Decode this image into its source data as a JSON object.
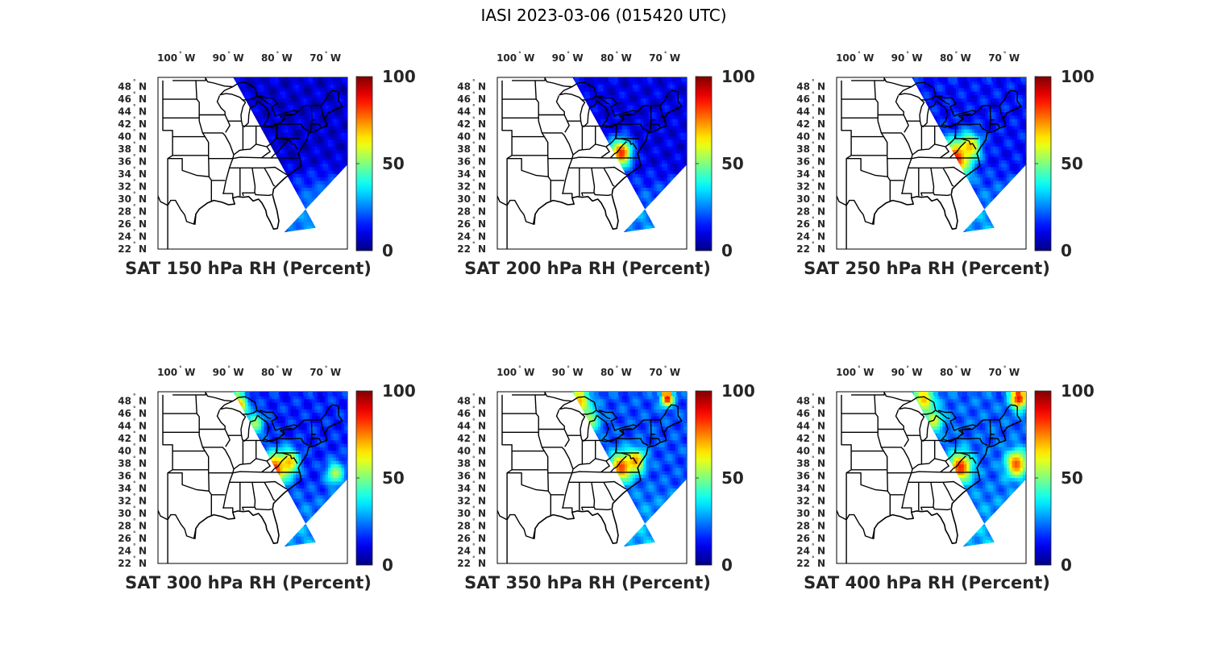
{
  "figure_title": "IASI 2023-03-06 (015420 UTC)",
  "colors": {
    "land_outline": "#000000",
    "colormap": "jet",
    "low": "#00008f",
    "mid": "#7fff7f",
    "high": "#800000"
  },
  "chart_data": [
    {
      "type": "map",
      "title": "SAT 150 hPa RH (Percent)",
      "variable": "RH",
      "units": "Percent",
      "pressure_hPa": 150,
      "clim": [
        0,
        100
      ],
      "colorbar_ticks": [
        "0",
        "50",
        "100"
      ],
      "lon_ticks": [
        {
          "deg": "100",
          "hemi": "W"
        },
        {
          "deg": "90",
          "hemi": "W"
        },
        {
          "deg": "80",
          "hemi": "W"
        },
        {
          "deg": "70",
          "hemi": "W"
        }
      ],
      "lat_ticks": [
        {
          "deg": "48",
          "hemi": "N"
        },
        {
          "deg": "46",
          "hemi": "N"
        },
        {
          "deg": "44",
          "hemi": "N"
        },
        {
          "deg": "42",
          "hemi": "N"
        },
        {
          "deg": "40",
          "hemi": "N"
        },
        {
          "deg": "38",
          "hemi": "N"
        },
        {
          "deg": "36",
          "hemi": "N"
        },
        {
          "deg": "34",
          "hemi": "N"
        },
        {
          "deg": "32",
          "hemi": "N"
        },
        {
          "deg": "30",
          "hemi": "N"
        },
        {
          "deg": "28",
          "hemi": "N"
        },
        {
          "deg": "26",
          "hemi": "N"
        },
        {
          "deg": "24",
          "hemi": "N"
        },
        {
          "deg": "22",
          "hemi": "N"
        }
      ],
      "lon_range": [
        -105,
        -66
      ],
      "lat_range": [
        22,
        49.5
      ],
      "background_rh": 8,
      "south_rh": 24,
      "moist_features": [
        {
          "lon": -70,
          "lat": 27,
          "rh": 28,
          "radius_deg": 4
        }
      ]
    },
    {
      "type": "map",
      "title": "SAT 200 hPa RH (Percent)",
      "variable": "RH",
      "units": "Percent",
      "pressure_hPa": 200,
      "clim": [
        0,
        100
      ],
      "colorbar_ticks": [
        "0",
        "50",
        "100"
      ],
      "lon_ticks": [
        {
          "deg": "100",
          "hemi": "W"
        },
        {
          "deg": "90",
          "hemi": "W"
        },
        {
          "deg": "80",
          "hemi": "W"
        },
        {
          "deg": "70",
          "hemi": "W"
        }
      ],
      "lat_ticks": [
        {
          "deg": "48",
          "hemi": "N"
        },
        {
          "deg": "46",
          "hemi": "N"
        },
        {
          "deg": "44",
          "hemi": "N"
        },
        {
          "deg": "42",
          "hemi": "N"
        },
        {
          "deg": "40",
          "hemi": "N"
        },
        {
          "deg": "38",
          "hemi": "N"
        },
        {
          "deg": "36",
          "hemi": "N"
        },
        {
          "deg": "34",
          "hemi": "N"
        },
        {
          "deg": "32",
          "hemi": "N"
        },
        {
          "deg": "30",
          "hemi": "N"
        },
        {
          "deg": "28",
          "hemi": "N"
        },
        {
          "deg": "26",
          "hemi": "N"
        },
        {
          "deg": "24",
          "hemi": "N"
        },
        {
          "deg": "22",
          "hemi": "N"
        }
      ],
      "lon_range": [
        -105,
        -66
      ],
      "lat_range": [
        22,
        49.5
      ],
      "background_rh": 10,
      "south_rh": 26,
      "moist_features": [
        {
          "lon": -79.5,
          "lat": 37.5,
          "rh": 85,
          "radius_deg": 1.5
        },
        {
          "lon": -82,
          "lat": 36.2,
          "rh": 60,
          "radius_deg": 1.6
        },
        {
          "lon": -83,
          "lat": 31,
          "rh": 45,
          "radius_deg": 1.2
        },
        {
          "lon": -81.5,
          "lat": 27.5,
          "rh": 55,
          "radius_deg": 1
        }
      ]
    },
    {
      "type": "map",
      "title": "SAT 250 hPa RH (Percent)",
      "variable": "RH",
      "units": "Percent",
      "pressure_hPa": 250,
      "clim": [
        0,
        100
      ],
      "colorbar_ticks": [
        "0",
        "50",
        "100"
      ],
      "lon_ticks": [
        {
          "deg": "100",
          "hemi": "W"
        },
        {
          "deg": "90",
          "hemi": "W"
        },
        {
          "deg": "80",
          "hemi": "W"
        },
        {
          "deg": "70",
          "hemi": "W"
        }
      ],
      "lat_ticks": [
        {
          "deg": "48",
          "hemi": "N"
        },
        {
          "deg": "46",
          "hemi": "N"
        },
        {
          "deg": "44",
          "hemi": "N"
        },
        {
          "deg": "42",
          "hemi": "N"
        },
        {
          "deg": "40",
          "hemi": "N"
        },
        {
          "deg": "38",
          "hemi": "N"
        },
        {
          "deg": "36",
          "hemi": "N"
        },
        {
          "deg": "34",
          "hemi": "N"
        },
        {
          "deg": "32",
          "hemi": "N"
        },
        {
          "deg": "30",
          "hemi": "N"
        },
        {
          "deg": "28",
          "hemi": "N"
        },
        {
          "deg": "26",
          "hemi": "N"
        },
        {
          "deg": "24",
          "hemi": "N"
        },
        {
          "deg": "22",
          "hemi": "N"
        }
      ],
      "lon_range": [
        -105,
        -66
      ],
      "lat_range": [
        22,
        49.5
      ],
      "background_rh": 14,
      "south_rh": 28,
      "moist_features": [
        {
          "lon": -80.5,
          "lat": 36.5,
          "rh": 88,
          "radius_deg": 2
        },
        {
          "lon": -77.5,
          "lat": 38.5,
          "rh": 70,
          "radius_deg": 1.5
        },
        {
          "lon": -83.5,
          "lat": 37.5,
          "rh": 55,
          "radius_deg": 1.5
        },
        {
          "lon": -80,
          "lat": 33.5,
          "rh": 50,
          "radius_deg": 1.3
        },
        {
          "lon": -82.5,
          "lat": 29.5,
          "rh": 48,
          "radius_deg": 1
        }
      ]
    },
    {
      "type": "map",
      "title": "SAT 300 hPa RH (Percent)",
      "variable": "RH",
      "units": "Percent",
      "pressure_hPa": 300,
      "clim": [
        0,
        100
      ],
      "colorbar_ticks": [
        "0",
        "50",
        "100"
      ],
      "lon_ticks": [
        {
          "deg": "100",
          "hemi": "W"
        },
        {
          "deg": "90",
          "hemi": "W"
        },
        {
          "deg": "80",
          "hemi": "W"
        },
        {
          "deg": "70",
          "hemi": "W"
        }
      ],
      "lat_ticks": [
        {
          "deg": "48",
          "hemi": "N"
        },
        {
          "deg": "46",
          "hemi": "N"
        },
        {
          "deg": "44",
          "hemi": "N"
        },
        {
          "deg": "42",
          "hemi": "N"
        },
        {
          "deg": "40",
          "hemi": "N"
        },
        {
          "deg": "38",
          "hemi": "N"
        },
        {
          "deg": "36",
          "hemi": "N"
        },
        {
          "deg": "34",
          "hemi": "N"
        },
        {
          "deg": "32",
          "hemi": "N"
        },
        {
          "deg": "30",
          "hemi": "N"
        },
        {
          "deg": "28",
          "hemi": "N"
        },
        {
          "deg": "26",
          "hemi": "N"
        },
        {
          "deg": "24",
          "hemi": "N"
        },
        {
          "deg": "22",
          "hemi": "N"
        }
      ],
      "lon_range": [
        -105,
        -66
      ],
      "lat_range": [
        22,
        49.5
      ],
      "background_rh": 16,
      "south_rh": 28,
      "moist_features": [
        {
          "lon": -81,
          "lat": 37.2,
          "rh": 85,
          "radius_deg": 1.8
        },
        {
          "lon": -78,
          "lat": 38.3,
          "rh": 70,
          "radius_deg": 1.4
        },
        {
          "lon": -68.5,
          "lat": 36.5,
          "rh": 55,
          "radius_deg": 1.3
        },
        {
          "lon": -88.5,
          "lat": 47.5,
          "rh": 75,
          "radius_deg": 1.3
        },
        {
          "lon": -85,
          "lat": 44.5,
          "rh": 55,
          "radius_deg": 1.2
        },
        {
          "lon": -82.5,
          "lat": 30,
          "rh": 45,
          "radius_deg": 1
        }
      ]
    },
    {
      "type": "map",
      "title": "SAT 350 hPa RH (Percent)",
      "variable": "RH",
      "units": "Percent",
      "pressure_hPa": 350,
      "clim": [
        0,
        100
      ],
      "colorbar_ticks": [
        "0",
        "50",
        "100"
      ],
      "lon_ticks": [
        {
          "deg": "100",
          "hemi": "W"
        },
        {
          "deg": "90",
          "hemi": "W"
        },
        {
          "deg": "80",
          "hemi": "W"
        },
        {
          "deg": "70",
          "hemi": "W"
        }
      ],
      "lat_ticks": [
        {
          "deg": "48",
          "hemi": "N"
        },
        {
          "deg": "46",
          "hemi": "N"
        },
        {
          "deg": "44",
          "hemi": "N"
        },
        {
          "deg": "42",
          "hemi": "N"
        },
        {
          "deg": "40",
          "hemi": "N"
        },
        {
          "deg": "38",
          "hemi": "N"
        },
        {
          "deg": "36",
          "hemi": "N"
        },
        {
          "deg": "34",
          "hemi": "N"
        },
        {
          "deg": "32",
          "hemi": "N"
        },
        {
          "deg": "30",
          "hemi": "N"
        },
        {
          "deg": "28",
          "hemi": "N"
        },
        {
          "deg": "26",
          "hemi": "N"
        },
        {
          "deg": "24",
          "hemi": "N"
        },
        {
          "deg": "22",
          "hemi": "N"
        }
      ],
      "lon_range": [
        -105,
        -66
      ],
      "lat_range": [
        22,
        49.5
      ],
      "background_rh": 20,
      "south_rh": 30,
      "moist_features": [
        {
          "lon": -79.5,
          "lat": 37.5,
          "rh": 82,
          "radius_deg": 1.6
        },
        {
          "lon": -76.5,
          "lat": 38.5,
          "rh": 75,
          "radius_deg": 1.3
        },
        {
          "lon": -88,
          "lat": 48,
          "rh": 70,
          "radius_deg": 1.5
        },
        {
          "lon": -70,
          "lat": 48.5,
          "rh": 90,
          "radius_deg": 0.9
        },
        {
          "lon": -86,
          "lat": 45,
          "rh": 55,
          "radius_deg": 1.4
        },
        {
          "lon": -82.5,
          "lat": 30.5,
          "rh": 45,
          "radius_deg": 1
        }
      ]
    },
    {
      "type": "map",
      "title": "SAT 400 hPa RH (Percent)",
      "variable": "RH",
      "units": "Percent",
      "pressure_hPa": 400,
      "clim": [
        0,
        100
      ],
      "colorbar_ticks": [
        "0",
        "50",
        "100"
      ],
      "lon_ticks": [
        {
          "deg": "100",
          "hemi": "W"
        },
        {
          "deg": "90",
          "hemi": "W"
        },
        {
          "deg": "80",
          "hemi": "W"
        },
        {
          "deg": "70",
          "hemi": "W"
        }
      ],
      "lat_ticks": [
        {
          "deg": "48",
          "hemi": "N"
        },
        {
          "deg": "46",
          "hemi": "N"
        },
        {
          "deg": "44",
          "hemi": "N"
        },
        {
          "deg": "42",
          "hemi": "N"
        },
        {
          "deg": "40",
          "hemi": "N"
        },
        {
          "deg": "38",
          "hemi": "N"
        },
        {
          "deg": "36",
          "hemi": "N"
        },
        {
          "deg": "34",
          "hemi": "N"
        },
        {
          "deg": "32",
          "hemi": "N"
        },
        {
          "deg": "30",
          "hemi": "N"
        },
        {
          "deg": "28",
          "hemi": "N"
        },
        {
          "deg": "26",
          "hemi": "N"
        },
        {
          "deg": "24",
          "hemi": "N"
        },
        {
          "deg": "22",
          "hemi": "N"
        }
      ],
      "lon_range": [
        -105,
        -66
      ],
      "lat_range": [
        22,
        49.5
      ],
      "background_rh": 22,
      "south_rh": 30,
      "moist_features": [
        {
          "lon": -79.5,
          "lat": 37.5,
          "rh": 85,
          "radius_deg": 1.6
        },
        {
          "lon": -68,
          "lat": 38,
          "rh": 80,
          "radius_deg": 1.5
        },
        {
          "lon": -67.5,
          "lat": 48.5,
          "rh": 88,
          "radius_deg": 1.2
        },
        {
          "lon": -87,
          "lat": 48.3,
          "rh": 70,
          "radius_deg": 1.4
        },
        {
          "lon": -85,
          "lat": 45,
          "rh": 60,
          "radius_deg": 1.3
        },
        {
          "lon": -78,
          "lat": 29,
          "rh": 60,
          "radius_deg": 0.8
        }
      ]
    }
  ]
}
